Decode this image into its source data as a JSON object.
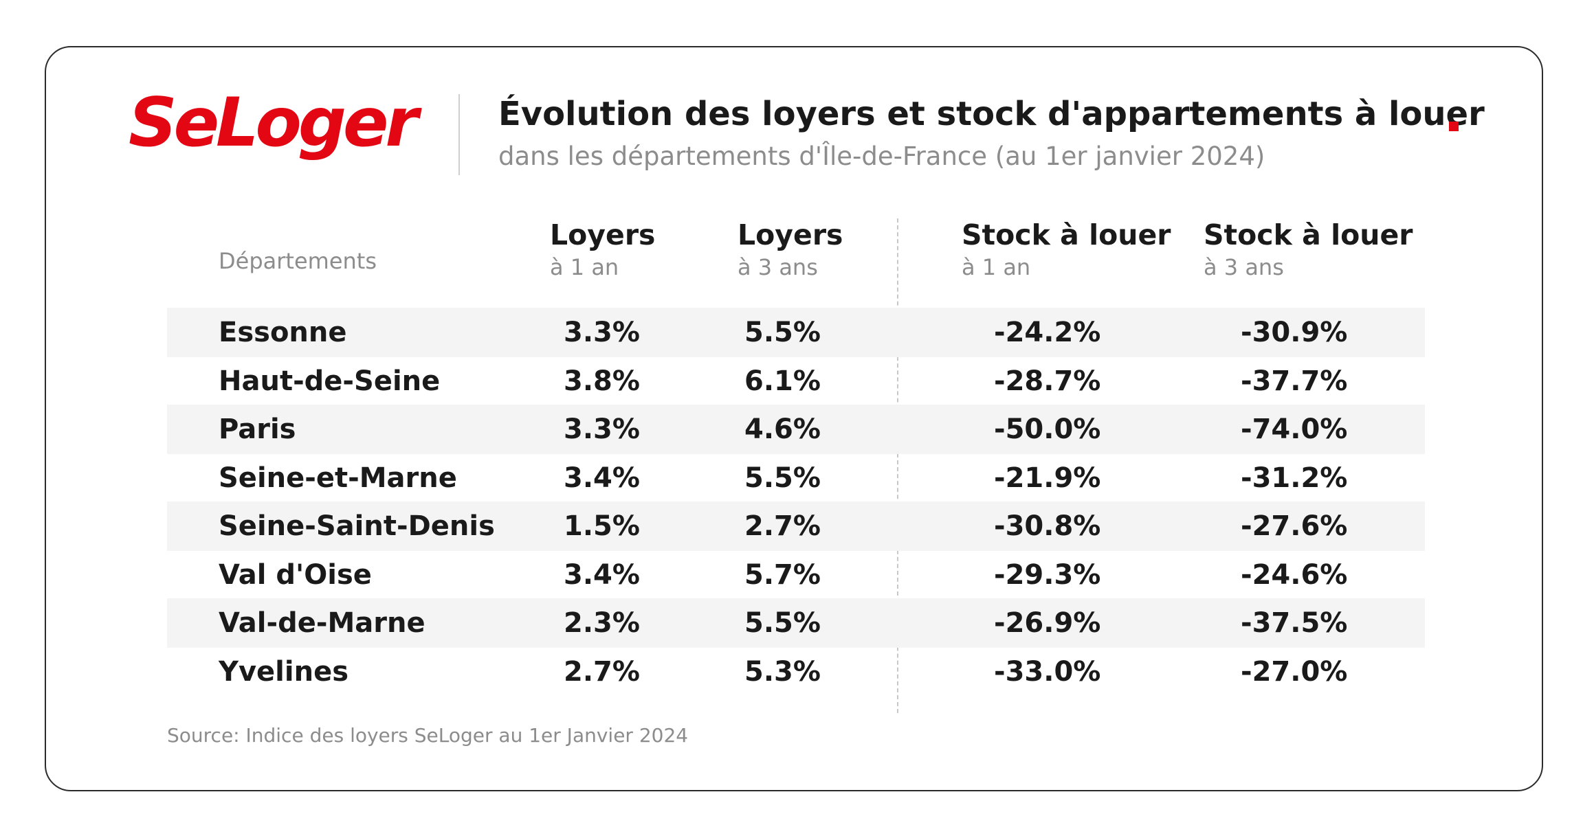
{
  "brand": {
    "logo_text": "SeLoger",
    "accent_color": "#e30613"
  },
  "chart_data": {
    "type": "table",
    "title": "Évolution des loyers et stock d'appartements à louer",
    "subtitle": "dans les départements d'Île-de-France (au 1er janvier 2024)",
    "columns": [
      {
        "label": "Départements",
        "sublabel": ""
      },
      {
        "label": "Loyers",
        "sublabel": "à 1 an"
      },
      {
        "label": "Loyers",
        "sublabel": "à 3 ans"
      },
      {
        "label": "Stock à louer",
        "sublabel": "à 1 an"
      },
      {
        "label": "Stock à louer",
        "sublabel": "à 3 ans"
      }
    ],
    "rows": [
      [
        "Essonne",
        "3.3%",
        "5.5%",
        "-24.2%",
        "-30.9%"
      ],
      [
        "Haut-de-Seine",
        "3.8%",
        "6.1%",
        "-28.7%",
        "-37.7%"
      ],
      [
        "Paris",
        "3.3%",
        "4.6%",
        "-50.0%",
        "-74.0%"
      ],
      [
        "Seine-et-Marne",
        "3.4%",
        "5.5%",
        "-21.9%",
        "-31.2%"
      ],
      [
        "Seine-Saint-Denis",
        "1.5%",
        "2.7%",
        "-30.8%",
        "-27.6%"
      ],
      [
        "Val d'Oise",
        "3.4%",
        "5.7%",
        "-29.3%",
        "-24.6%"
      ],
      [
        "Val-de-Marne",
        "2.3%",
        "5.5%",
        "-26.9%",
        "-37.5%"
      ],
      [
        "Yvelines",
        "2.7%",
        "5.3%",
        "-33.0%",
        "-27.0%"
      ]
    ],
    "source": "Source: Indice des loyers SeLoger au 1er Janvier 2024"
  }
}
